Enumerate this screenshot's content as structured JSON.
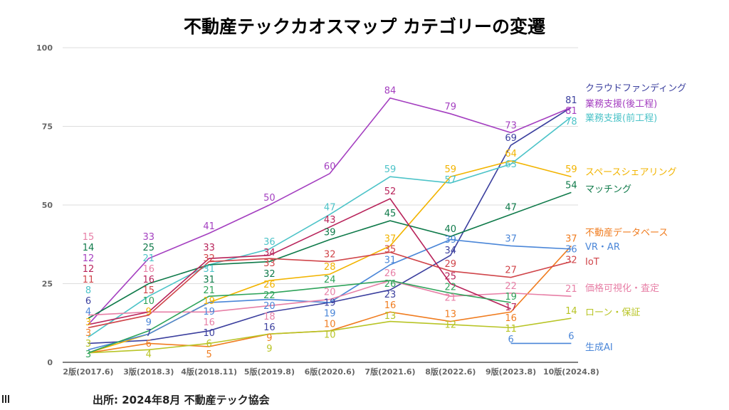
{
  "chart_data": {
    "type": "line",
    "title": "不動産テックカオスマップ カテゴリーの変遷",
    "source": "出所: 2024年8月 不動産テック協会",
    "categories": [
      "2版(2017.6)",
      "3版(2018.3)",
      "4版(2018.11)",
      "5版(2019.8)",
      "6版(2020.6)",
      "7版(2021.6)",
      "8版(2022.6)",
      "9版(2023.8)",
      "10版(2024.8)"
    ],
    "ylim": [
      0,
      100
    ],
    "yticks": [
      0,
      25,
      50,
      75,
      100
    ],
    "grid": true,
    "legend": "right (labels at line ends)",
    "series": [
      {
        "name": "クラウドファンディング",
        "color": "#3b3f9e",
        "values": [
          6,
          7,
          10,
          16,
          19,
          23,
          34,
          69,
          81
        ]
      },
      {
        "name": "業務支援(後工程)",
        "color": "#a43fc0",
        "values": [
          12,
          33,
          41,
          50,
          60,
          84,
          79,
          73,
          81
        ]
      },
      {
        "name": "業務支援(前工程)",
        "color": "#4cc3c8",
        "values": [
          8,
          21,
          31,
          36,
          47,
          59,
          57,
          63,
          78
        ]
      },
      {
        "name": "スペースシェアリング",
        "color": "#f2b400",
        "values": [
          3,
          9,
          19,
          26,
          28,
          37,
          59,
          64,
          59
        ]
      },
      {
        "name": "マッチング",
        "color": "#0f7a4a",
        "values": [
          14,
          25,
          31,
          32,
          39,
          45,
          40,
          47,
          54
        ]
      },
      {
        "name": "不動産データベース",
        "color": "#f07c1f",
        "values": [
          3,
          6,
          5,
          9,
          10,
          16,
          13,
          16,
          37
        ]
      },
      {
        "name": "VR・AR",
        "color": "#4a86d8",
        "values": [
          4,
          9,
          19,
          20,
          19,
          31,
          39,
          37,
          36
        ]
      },
      {
        "name": "IoT",
        "color": "#d0454a",
        "values": [
          11,
          15,
          32,
          33,
          32,
          35,
          29,
          27,
          32
        ]
      },
      {
        "name": "価格可視化・査定",
        "color": "#e77fa6",
        "values": [
          15,
          16,
          16,
          18,
          20,
          26,
          21,
          22,
          21
        ]
      },
      {
        "name": "ローン・保証",
        "color": "#b8c425",
        "values": [
          3,
          4,
          6,
          9,
          10,
          13,
          12,
          11,
          14
        ]
      },
      {
        "name": "生成AI",
        "color": "#4a86d8",
        "values": [
          null,
          null,
          null,
          null,
          null,
          null,
          null,
          6,
          6
        ]
      },
      {
        "color": "#b8235a",
        "values": [
          12,
          16,
          33,
          34,
          43,
          52,
          25,
          17,
          null
        ]
      },
      {
        "color": "#2ea35a",
        "values": [
          3,
          10,
          21,
          22,
          24,
          26,
          22,
          19,
          null
        ]
      }
    ]
  }
}
